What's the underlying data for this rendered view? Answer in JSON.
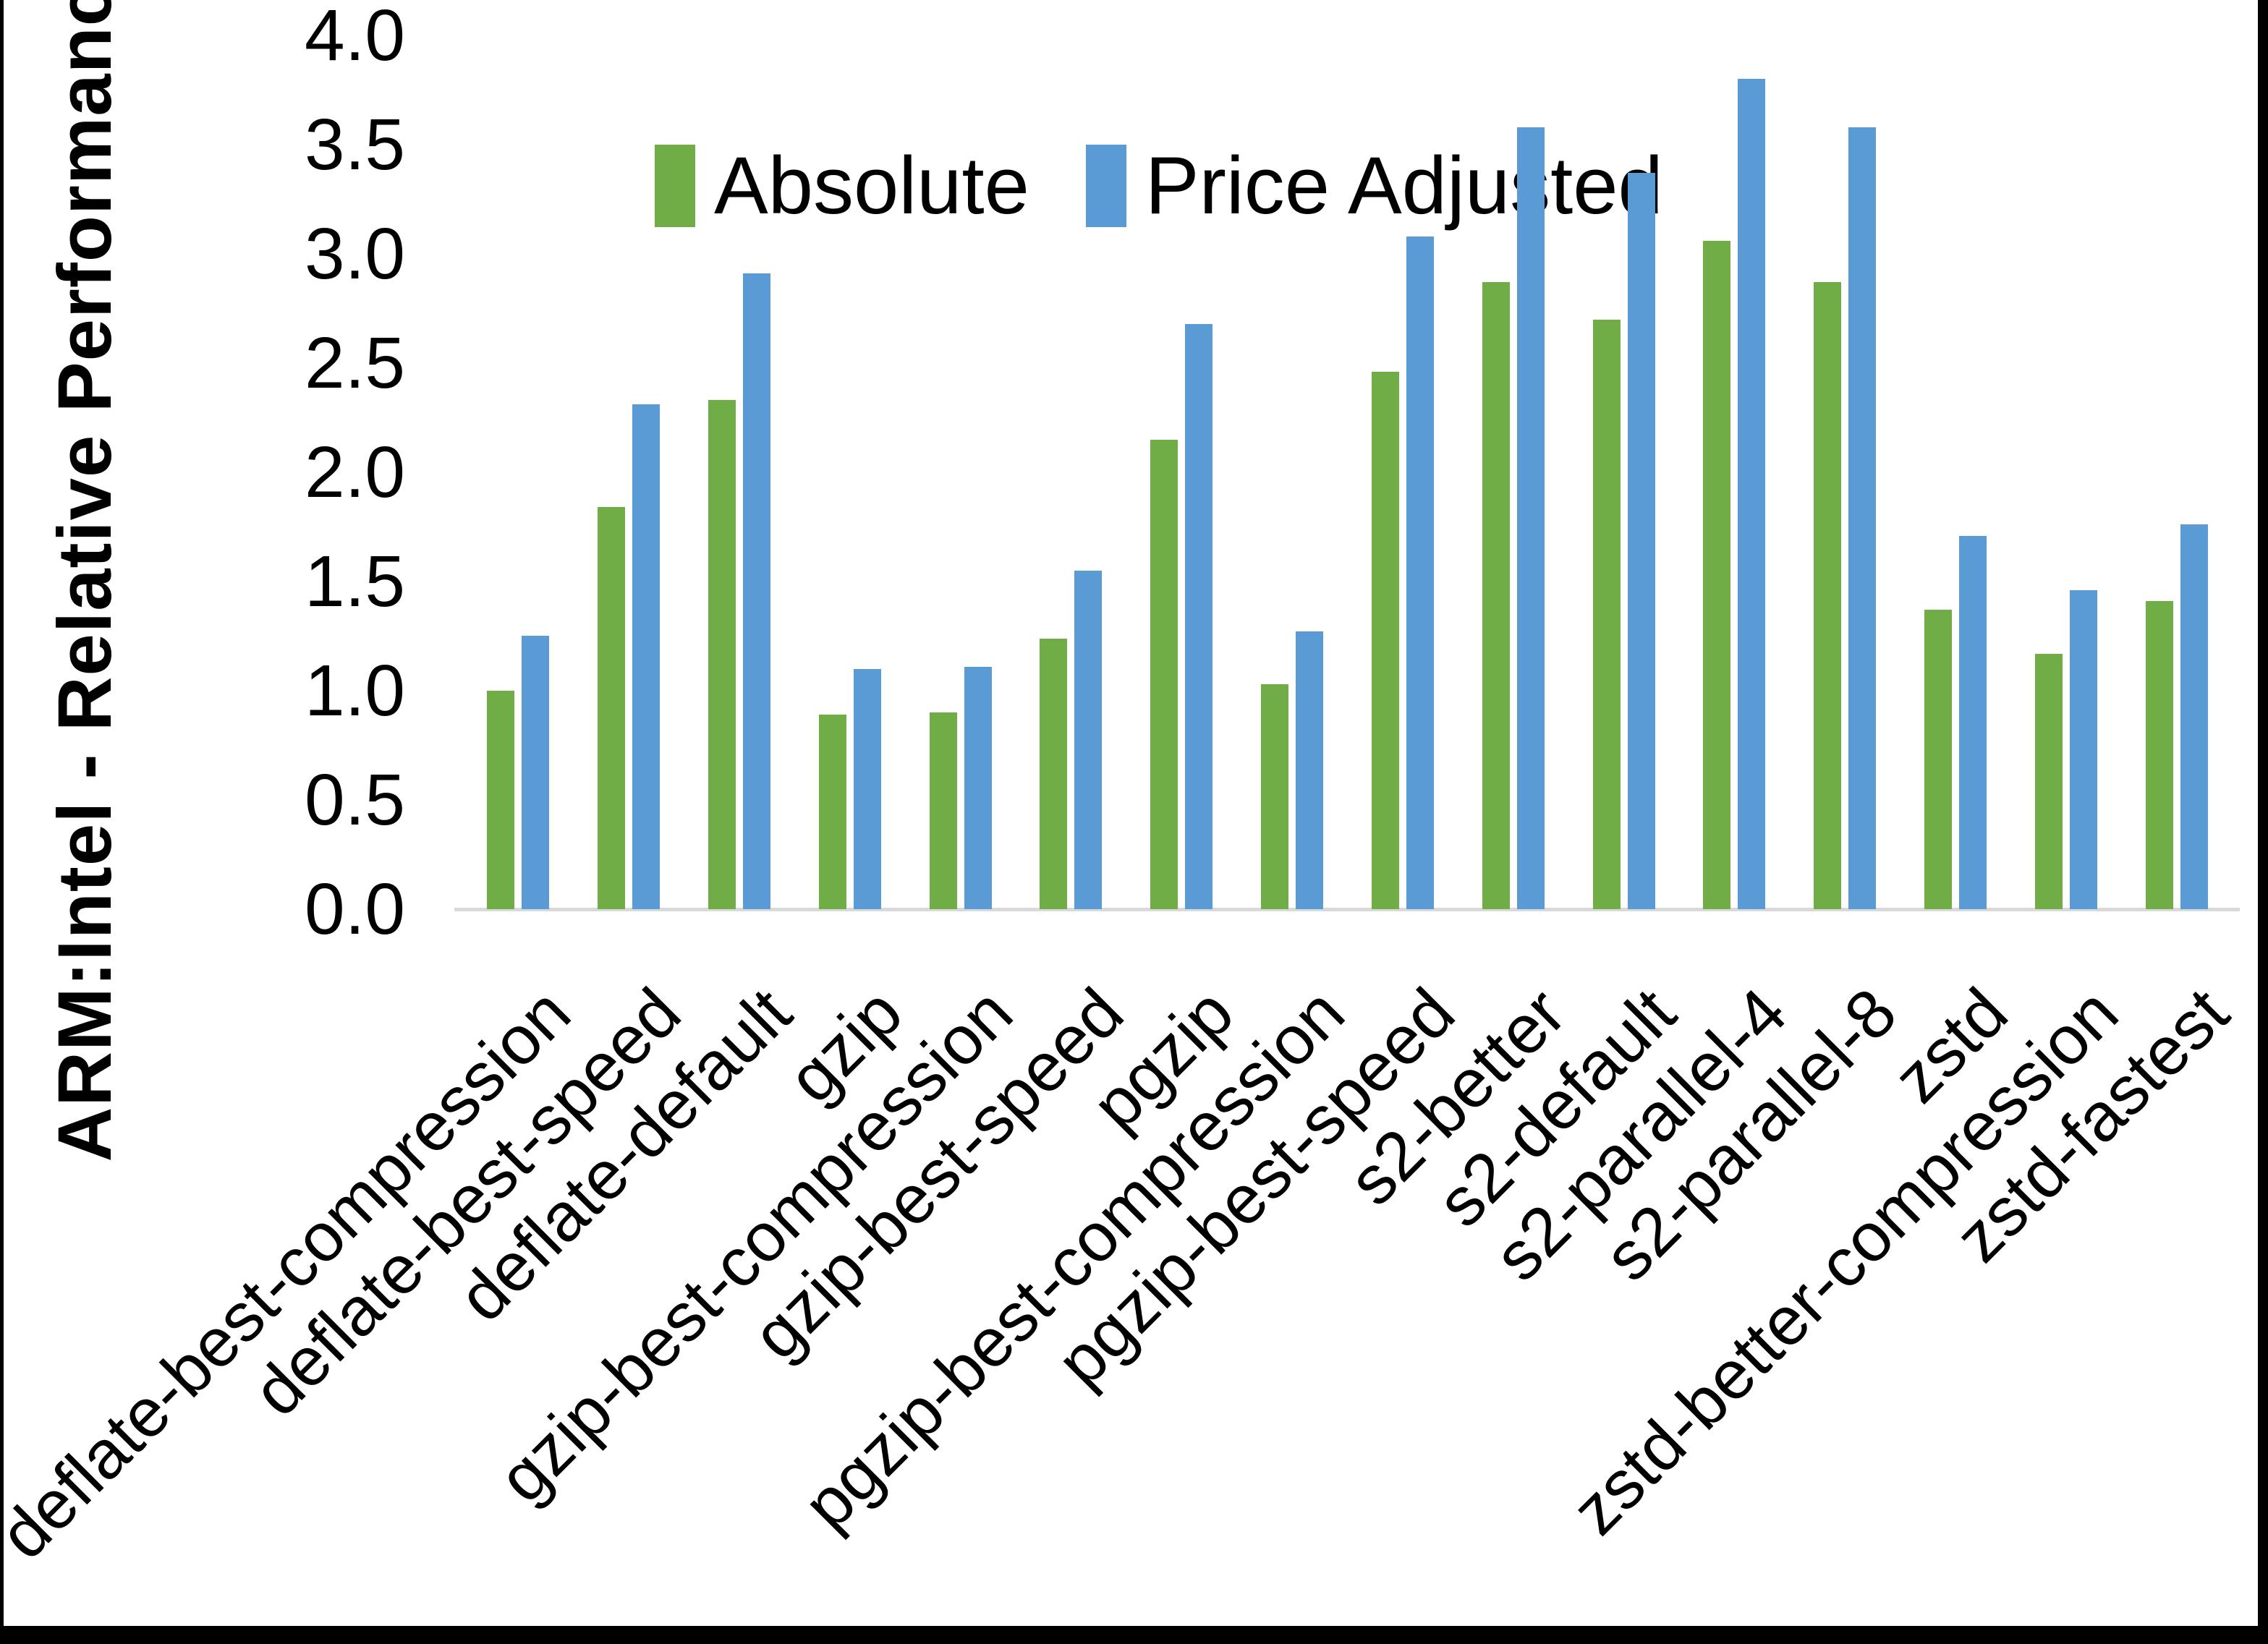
{
  "chart_data": {
    "type": "bar",
    "title": "",
    "ylabel": "ARM:Intel - Relative Performance",
    "xlabel": "",
    "ylim": [
      0.0,
      4.0
    ],
    "ytick_step": 0.5,
    "ytick_labels": [
      "0.0",
      "0.5",
      "1.0",
      "1.5",
      "2.0",
      "2.5",
      "3.0",
      "3.5",
      "4.0"
    ],
    "grid": false,
    "legend_position": "top-center",
    "axis_line_color": "#d9d9d9",
    "background_color": "#ffffff",
    "categories": [
      "deflate-best-compression",
      "deflate-best-speed",
      "deflate-default",
      "gzip",
      "gzip-best-compression",
      "gzip-best-speed",
      "pgzip",
      "pgzip-best-compression",
      "pgzip-best-speed",
      "s2-better",
      "s2-default",
      "s2-parallel-4",
      "s2-parallel-8",
      "zstd",
      "zstd-better-compression",
      "zstd-fastest"
    ],
    "series": [
      {
        "name": "Absolute",
        "color": "#70AD47",
        "values": [
          1.0,
          1.84,
          2.33,
          0.89,
          0.9,
          1.24,
          2.15,
          1.03,
          2.46,
          2.87,
          2.7,
          3.06,
          2.87,
          1.37,
          1.17,
          1.41
        ]
      },
      {
        "name": "Price Adjusted",
        "color": "#5B9BD5",
        "values": [
          1.25,
          2.31,
          2.91,
          1.1,
          1.11,
          1.55,
          2.68,
          1.27,
          3.08,
          3.58,
          3.37,
          3.8,
          3.58,
          1.71,
          1.46,
          1.76
        ]
      }
    ]
  },
  "legend": {
    "absolute_label": "Absolute",
    "price_adjusted_label": "Price Adjusted"
  },
  "axes": {
    "y_title": "ARM:Intel - Relative Performance"
  },
  "frame": {
    "border_color": "#000000"
  }
}
